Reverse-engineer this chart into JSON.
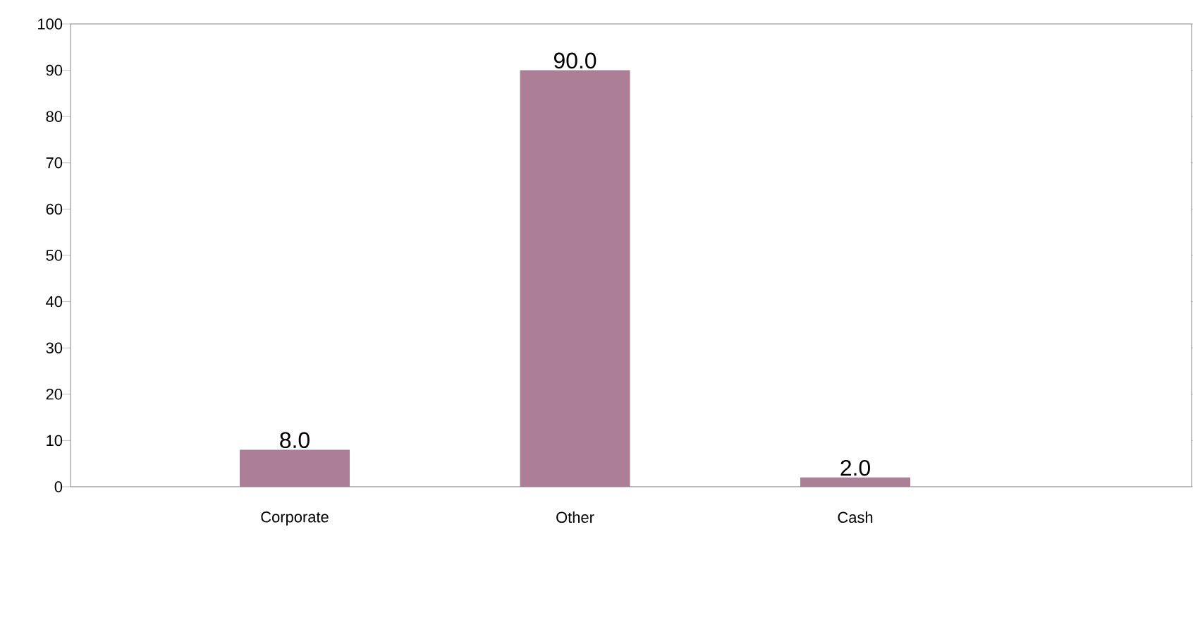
{
  "chart_data": {
    "type": "bar",
    "categories": [
      "Corporate",
      "Other",
      "Cash"
    ],
    "values": [
      8,
      90,
      2
    ],
    "value_labels": [
      "8.0",
      "90.0",
      "2.0"
    ],
    "color": "#ad7f96",
    "ylim": [
      0,
      100
    ],
    "yticks": [
      0,
      10,
      20,
      30,
      40,
      50,
      60,
      70,
      80,
      90,
      100
    ],
    "grid": false
  }
}
